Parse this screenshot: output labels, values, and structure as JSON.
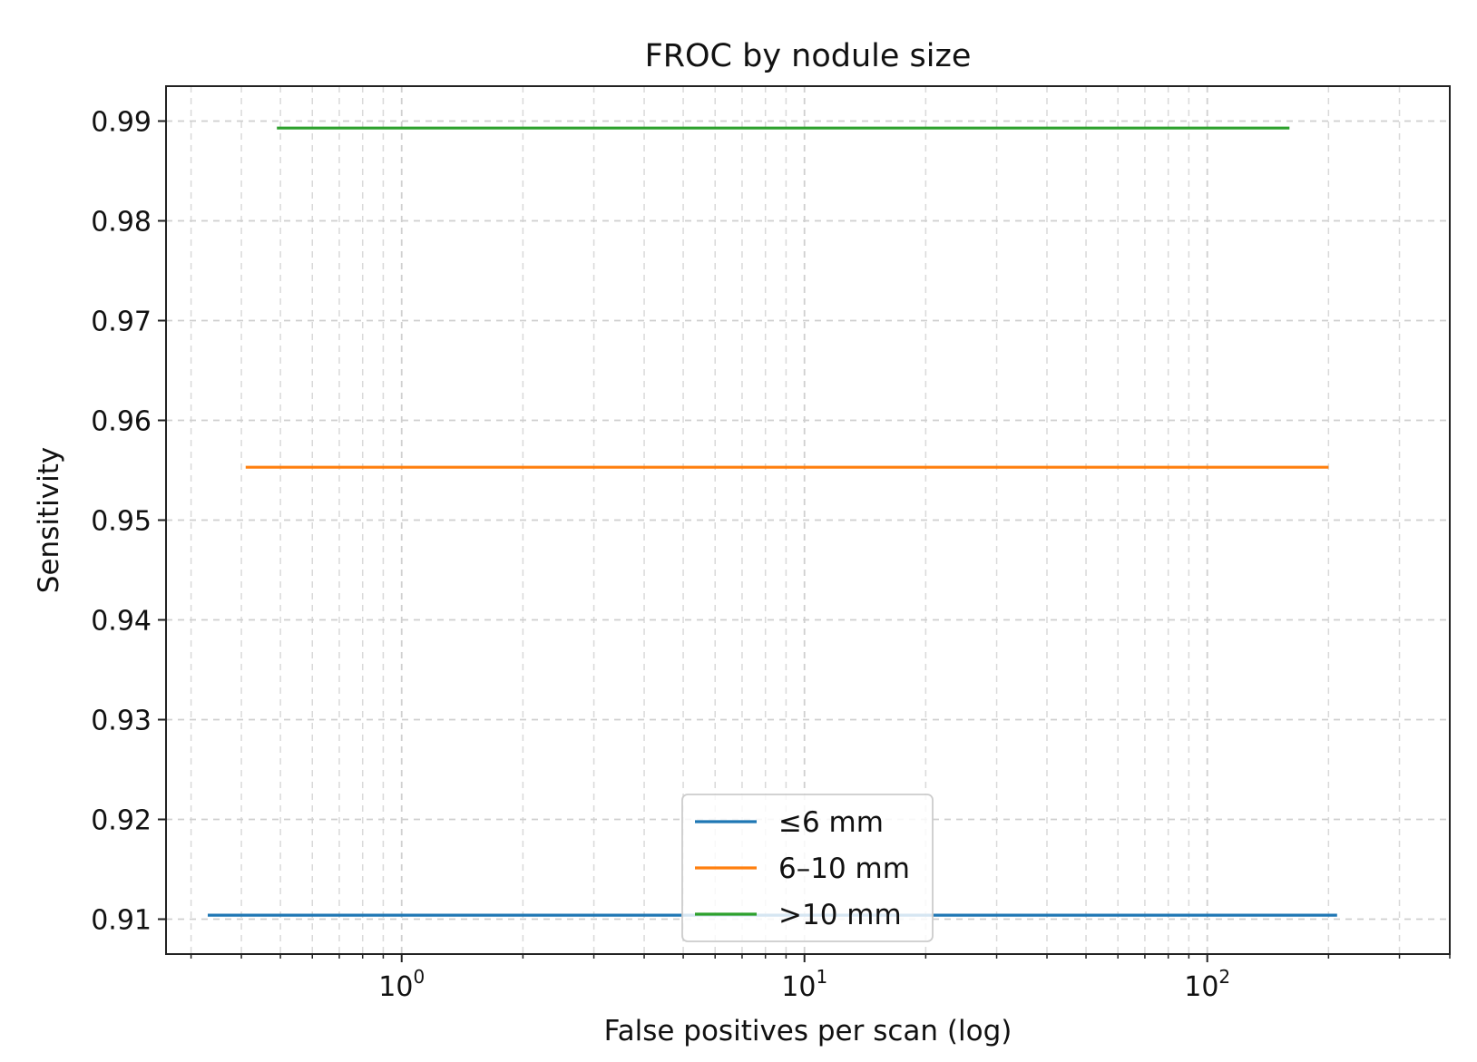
{
  "chart_data": {
    "type": "line",
    "title": "FROC by nodule size",
    "xlabel": "False positives per scan (log)",
    "ylabel": "Sensitivity",
    "xscale": "log",
    "xlim": [
      0.26,
      400
    ],
    "ylim": [
      0.9065,
      0.9935
    ],
    "grid": true,
    "grid_style": "dashed",
    "legend_location": "lower center",
    "yticks": [
      0.91,
      0.92,
      0.93,
      0.94,
      0.95,
      0.96,
      0.97,
      0.98,
      0.99
    ],
    "ytick_labels": [
      "0.91",
      "0.92",
      "0.93",
      "0.94",
      "0.95",
      "0.96",
      "0.97",
      "0.98",
      "0.99"
    ],
    "xticks": [
      {
        "value": 1,
        "base": "10",
        "exponent": "0"
      },
      {
        "value": 10,
        "base": "10",
        "exponent": "1"
      },
      {
        "value": 100,
        "base": "10",
        "exponent": "2"
      }
    ],
    "series": [
      {
        "name": "≤6 mm",
        "color": "#1f77b4",
        "x": [
          0.33,
          210
        ],
        "y": [
          0.9104,
          0.9104
        ]
      },
      {
        "name": "6–10 mm",
        "color": "#ff7f0e",
        "x": [
          0.41,
          200
        ],
        "y": [
          0.9553,
          0.9553
        ]
      },
      {
        "name": ">10 mm",
        "color": "#2ca02c",
        "x": [
          0.49,
          160
        ],
        "y": [
          0.9893,
          0.9893
        ]
      }
    ]
  }
}
